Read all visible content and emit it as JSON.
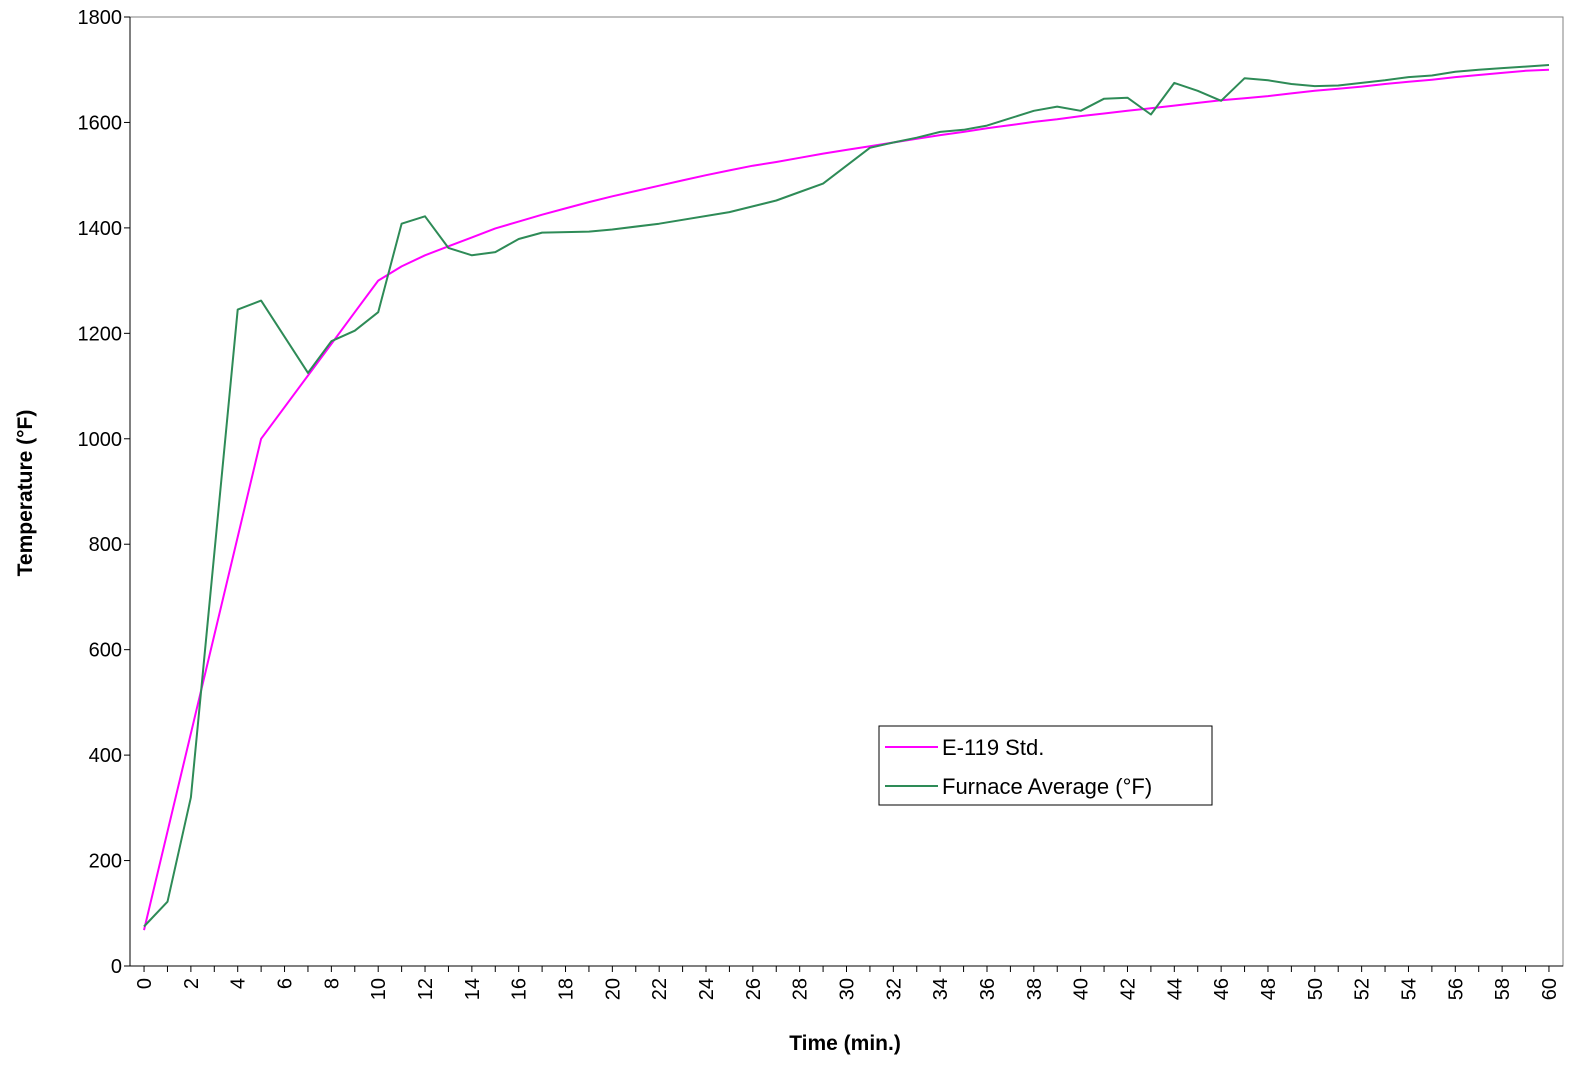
{
  "chart_data": {
    "type": "line",
    "title": "",
    "xlabel": "Time (min.)",
    "ylabel": "Temperature (°F)",
    "xlim": [
      -0.6,
      60.6
    ],
    "ylim": [
      0,
      1800
    ],
    "x_ticks": [
      0,
      2,
      4,
      6,
      8,
      10,
      12,
      14,
      16,
      18,
      20,
      22,
      24,
      26,
      28,
      30,
      32,
      34,
      36,
      38,
      40,
      42,
      44,
      46,
      48,
      50,
      52,
      54,
      56,
      58,
      60
    ],
    "y_ticks": [
      0,
      200,
      400,
      600,
      800,
      1000,
      1200,
      1400,
      1600,
      1800
    ],
    "grid": false,
    "legend_position": "center-right",
    "series": [
      {
        "name": "E-119 Std.",
        "color": "#FF00FF",
        "x": [
          0,
          5,
          7,
          8,
          9,
          10,
          11,
          12,
          13,
          14,
          15,
          16,
          17,
          18,
          19,
          20,
          21,
          22,
          23,
          24,
          25,
          26,
          27,
          28,
          29,
          30,
          31,
          32,
          33,
          34,
          35,
          36,
          37,
          38,
          39,
          40,
          41,
          42,
          43,
          44,
          45,
          46,
          47,
          48,
          49,
          50,
          51,
          52,
          53,
          54,
          55,
          56,
          57,
          58,
          59,
          60
        ],
        "y": [
          68,
          1000,
          1120,
          1180,
          1240,
          1300,
          1327,
          1348,
          1365,
          1382,
          1399,
          1412,
          1425,
          1437,
          1449,
          1460,
          1470,
          1480,
          1490,
          1500,
          1509,
          1518,
          1525,
          1533,
          1541,
          1548,
          1555,
          1562,
          1569,
          1576,
          1582,
          1589,
          1595,
          1601,
          1606,
          1612,
          1617,
          1622,
          1627,
          1632,
          1637,
          1642,
          1646,
          1650,
          1655,
          1660,
          1664,
          1668,
          1673,
          1677,
          1681,
          1686,
          1690,
          1694,
          1698,
          1700
        ]
      },
      {
        "name": "Furnace Average (°F)",
        "color": "#2E8B57",
        "x": [
          0,
          1,
          2,
          4,
          5,
          7,
          8,
          9,
          10,
          11,
          12,
          13,
          14,
          15,
          16,
          17,
          19,
          20,
          22,
          25,
          27,
          28,
          29,
          31,
          32,
          33,
          34,
          35,
          36,
          37,
          38,
          39,
          40,
          41,
          42,
          43,
          44,
          45,
          46,
          47,
          48,
          49,
          50,
          51,
          52,
          53,
          54,
          55,
          56,
          57,
          58,
          59,
          60
        ],
        "y": [
          75,
          122,
          320,
          1245,
          1262,
          1125,
          1185,
          1205,
          1240,
          1408,
          1422,
          1362,
          1348,
          1354,
          1379,
          1391,
          1393,
          1397,
          1408,
          1430,
          1452,
          1468,
          1484,
          1552,
          1562,
          1571,
          1582,
          1586,
          1594,
          1608,
          1622,
          1630,
          1622,
          1645,
          1647,
          1615,
          1675,
          1660,
          1641,
          1684,
          1680,
          1673,
          1669,
          1670,
          1675,
          1680,
          1686,
          1689,
          1696,
          1700,
          1703,
          1706,
          1709
        ]
      }
    ]
  }
}
